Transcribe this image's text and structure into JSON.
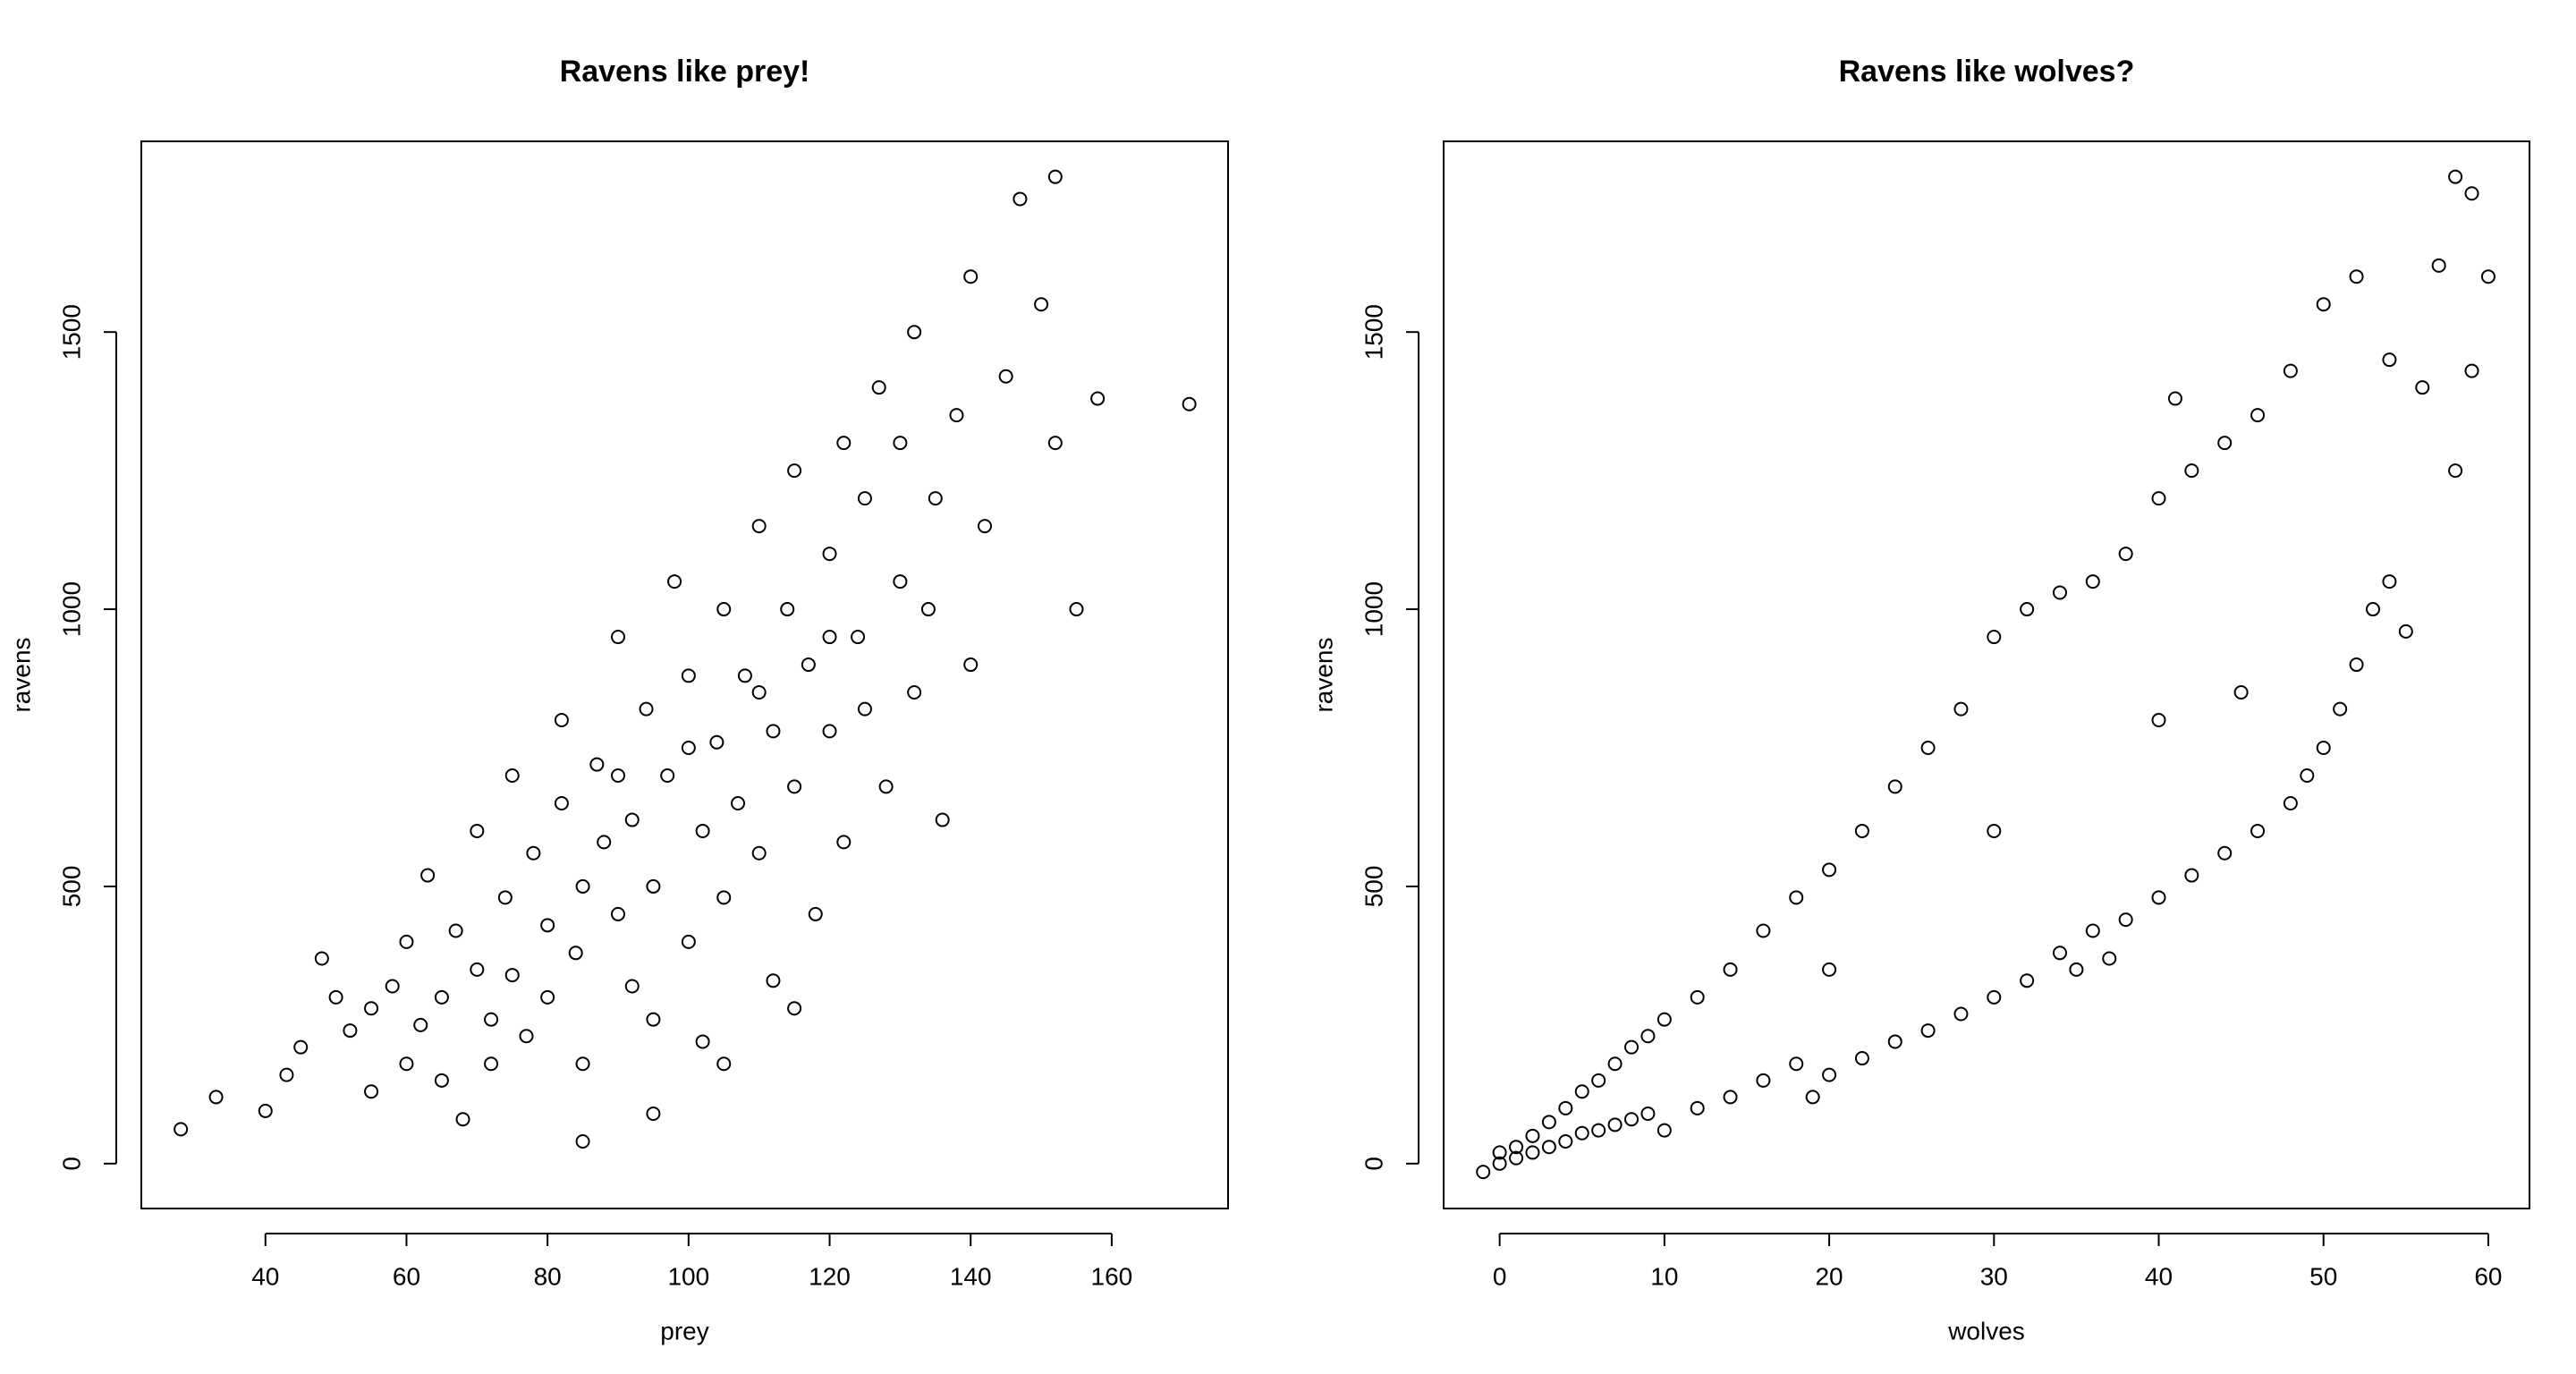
{
  "chart_data": [
    {
      "type": "scatter",
      "title": "Ravens like prey!",
      "x_label": "prey",
      "y_label": "ravens",
      "color": "#000000",
      "xlim": [
        22.4,
        176.5
      ],
      "ylim": [
        -81,
        1844
      ],
      "xticks": [
        40,
        60,
        80,
        100,
        120,
        140,
        160
      ],
      "yticks": [
        0,
        500,
        1000,
        1500
      ],
      "x": [
        28,
        33,
        40,
        43,
        45,
        48,
        50,
        52,
        55,
        55,
        58,
        60,
        60,
        62,
        63,
        65,
        65,
        67,
        68,
        70,
        70,
        72,
        72,
        74,
        75,
        75,
        77,
        78,
        80,
        80,
        82,
        82,
        84,
        85,
        85,
        87,
        88,
        90,
        90,
        92,
        92,
        94,
        95,
        95,
        97,
        98,
        100,
        100,
        102,
        102,
        104,
        105,
        105,
        107,
        108,
        110,
        110,
        112,
        112,
        114,
        115,
        115,
        117,
        118,
        120,
        120,
        122,
        122,
        124,
        125,
        125,
        127,
        128,
        130,
        130,
        132,
        132,
        134,
        135,
        136,
        138,
        140,
        140,
        142,
        145,
        147,
        150,
        152,
        152,
        155,
        158,
        171,
        85,
        95,
        105,
        115,
        90,
        100,
        110,
        120
      ],
      "y": [
        62,
        120,
        95,
        160,
        210,
        370,
        300,
        240,
        280,
        130,
        320,
        400,
        180,
        250,
        520,
        300,
        150,
        420,
        80,
        350,
        600,
        260,
        180,
        480,
        700,
        340,
        230,
        560,
        430,
        300,
        650,
        800,
        380,
        500,
        180,
        720,
        580,
        450,
        950,
        320,
        620,
        820,
        260,
        500,
        700,
        1050,
        400,
        880,
        600,
        220,
        760,
        480,
        1000,
        650,
        880,
        560,
        1150,
        330,
        780,
        1000,
        680,
        1250,
        900,
        450,
        1100,
        780,
        1300,
        580,
        950,
        1200,
        820,
        1400,
        680,
        1050,
        1300,
        850,
        1500,
        1000,
        1200,
        620,
        1350,
        900,
        1600,
        1150,
        1420,
        1740,
        1550,
        1780,
        1300,
        1000,
        1380,
        1370,
        40,
        90,
        180,
        280,
        700,
        750,
        850,
        950
      ]
    },
    {
      "type": "scatter",
      "title": "Ravens like wolves?",
      "x_label": "wolves",
      "y_label": "ravens",
      "color": "#000000",
      "xlim": [
        -3.4,
        62.5
      ],
      "ylim": [
        -81,
        1844
      ],
      "xticks": [
        0,
        10,
        20,
        30,
        40,
        50,
        60
      ],
      "yticks": [
        0,
        500,
        1000,
        1500
      ],
      "x": [
        -1,
        0,
        0,
        1,
        1,
        2,
        2,
        3,
        3,
        4,
        4,
        5,
        5,
        6,
        6,
        7,
        7,
        8,
        8,
        9,
        9,
        10,
        10,
        12,
        12,
        14,
        14,
        16,
        16,
        18,
        18,
        19,
        20,
        20,
        20,
        22,
        22,
        24,
        24,
        26,
        26,
        28,
        28,
        30,
        30,
        30,
        32,
        32,
        34,
        34,
        35,
        36,
        36,
        37,
        38,
        38,
        40,
        40,
        40,
        41,
        42,
        42,
        44,
        44,
        45,
        46,
        46,
        48,
        48,
        49,
        50,
        50,
        51,
        52,
        52,
        53,
        54,
        54,
        55,
        56,
        57,
        58,
        58,
        59,
        60,
        59
      ],
      "y": [
        -15,
        0,
        20,
        10,
        30,
        20,
        50,
        30,
        75,
        40,
        100,
        55,
        130,
        60,
        150,
        70,
        180,
        80,
        210,
        90,
        230,
        60,
        260,
        100,
        300,
        120,
        350,
        150,
        420,
        180,
        480,
        120,
        160,
        530,
        350,
        190,
        600,
        220,
        680,
        240,
        750,
        270,
        820,
        300,
        950,
        600,
        330,
        1000,
        380,
        1030,
        350,
        420,
        1050,
        370,
        440,
        1100,
        480,
        1200,
        800,
        1380,
        520,
        1250,
        560,
        1300,
        850,
        600,
        1350,
        650,
        1430,
        700,
        750,
        1550,
        820,
        900,
        1600,
        1000,
        1050,
        1450,
        960,
        1400,
        1620,
        1250,
        1780,
        1430,
        1600,
        1750
      ]
    }
  ]
}
